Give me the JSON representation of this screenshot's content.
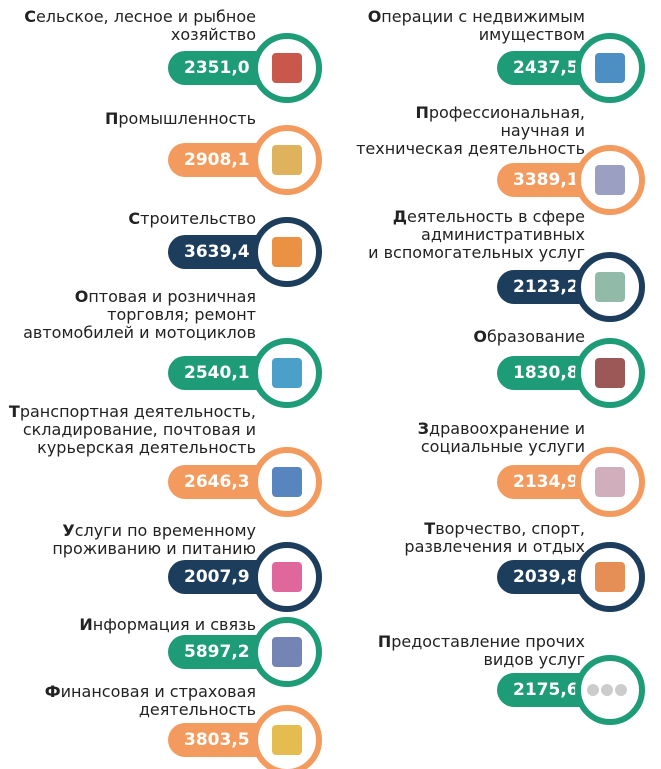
{
  "items": [
    {
      "label": [
        "Сельское, лесное и рыбное",
        "хозяйство"
      ],
      "value": "2351,0"
    },
    {
      "label": [
        "Промышленность"
      ],
      "value": "2908,1"
    },
    {
      "label": [
        "Строительство"
      ],
      "value": "3639,4"
    },
    {
      "label": [
        "Оптовая и розничная",
        "торговля; ремонт",
        "автомобилей и мотоциклов"
      ],
      "value": "2540,1"
    },
    {
      "label": [
        "Транспортная деятельность,",
        "складирование, почтовая и",
        "курьерская деятельность"
      ],
      "value": "2646,3"
    },
    {
      "label": [
        "Услуги по временному",
        "проживанию и питанию"
      ],
      "value": "2007,9"
    },
    {
      "label": [
        "Информация и связь"
      ],
      "value": "5897,2"
    },
    {
      "label": [
        "Финансовая  и страховая",
        "деятельность"
      ],
      "value": "3803,5"
    },
    {
      "label": [
        "Операции с недвижимым",
        "имуществом"
      ],
      "value": "2437,5"
    },
    {
      "label": [
        "Профессиональная,",
        "научная и",
        "техническая деятельность"
      ],
      "value": "3389,1"
    },
    {
      "label": [
        "Деятельность в сфере",
        "административных",
        "и вспомогательных услуг"
      ],
      "value": "2123,2"
    },
    {
      "label": [
        "Образование"
      ],
      "value": "1830,8"
    },
    {
      "label": [
        "Здравоохранение и",
        "социальные услуги"
      ],
      "value": "2134,9"
    },
    {
      "label": [
        "Творчество, спорт,",
        "развлечения и отдых"
      ],
      "value": "2039,8"
    },
    {
      "label": [
        "Предоставление прочих",
        "видов услуг"
      ],
      "value": "2175,6"
    }
  ]
}
